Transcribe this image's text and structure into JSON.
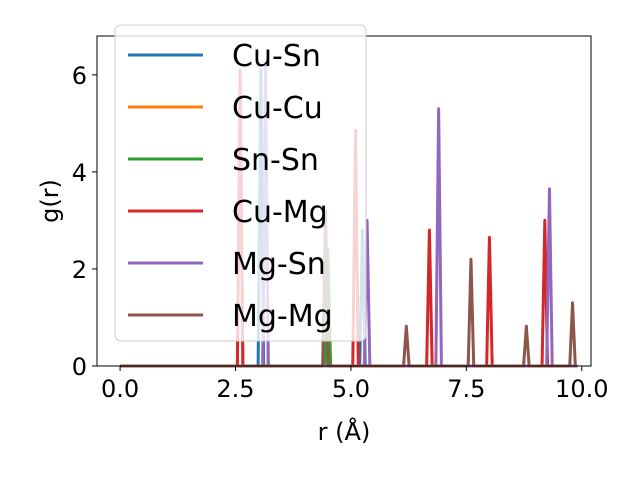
{
  "chart_data": {
    "type": "line",
    "title": "",
    "xlabel": "r (Å)",
    "ylabel": "g(r)",
    "xlim": [
      -0.5,
      10.2
    ],
    "ylim": [
      0,
      6.8
    ],
    "xticks": [
      0.0,
      2.5,
      5.0,
      7.5,
      10.0
    ],
    "xtick_labels": [
      "0.0",
      "2.5",
      "5.0",
      "7.5",
      "10.0"
    ],
    "yticks": [
      0,
      2,
      4,
      6
    ],
    "ytick_labels": [
      "0",
      "2",
      "4",
      "6"
    ],
    "grid": false,
    "legend_position": "top-left",
    "baseline_range": [
      0.0,
      9.9
    ],
    "peak_half_width": 0.06,
    "series": [
      {
        "name": "Cu-Sn",
        "color": "#1f77b4",
        "peaks": [
          [
            3.05,
            6.1
          ],
          [
            5.25,
            2.8
          ]
        ]
      },
      {
        "name": "Cu-Cu",
        "color": "#ff7f0e",
        "peaks": [
          [
            2.6,
            5.9
          ],
          [
            4.45,
            2.6
          ]
        ]
      },
      {
        "name": "Sn-Sn",
        "color": "#2ca02c",
        "peaks": [
          [
            3.15,
            5.8
          ],
          [
            4.5,
            2.4
          ]
        ]
      },
      {
        "name": "Cu-Mg",
        "color": "#d62728",
        "peaks": [
          [
            2.6,
            6.1
          ],
          [
            5.1,
            4.85
          ],
          [
            6.7,
            2.8
          ],
          [
            8.0,
            2.65
          ],
          [
            9.2,
            3.0
          ]
        ]
      },
      {
        "name": "Mg-Sn",
        "color": "#9467bd",
        "peaks": [
          [
            3.15,
            6.2
          ],
          [
            5.35,
            3.0
          ],
          [
            6.9,
            5.3
          ],
          [
            9.3,
            3.65
          ]
        ]
      },
      {
        "name": "Mg-Mg",
        "color": "#8c564b",
        "peaks": [
          [
            4.45,
            3.2
          ],
          [
            6.2,
            0.82
          ],
          [
            7.6,
            2.2
          ],
          [
            8.8,
            0.82
          ],
          [
            9.8,
            1.3
          ]
        ]
      }
    ]
  }
}
